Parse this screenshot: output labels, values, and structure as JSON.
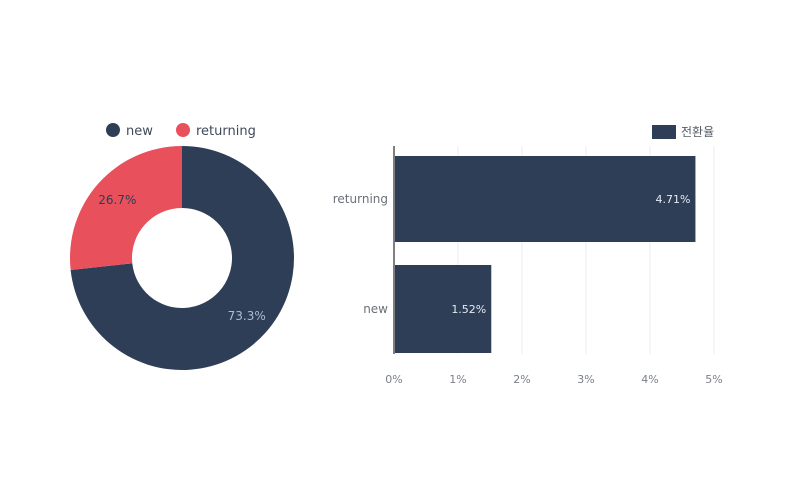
{
  "colors": {
    "navy": "#2e3e57",
    "red": "#e8505b",
    "grid": "#e9ecef",
    "axis": "#555555"
  },
  "chart_data": [
    {
      "type": "pie",
      "donut": true,
      "legend_position": "top",
      "slices": [
        {
          "name": "new",
          "value": 73.3,
          "label": "73.3%",
          "color": "#2e3e57"
        },
        {
          "name": "returning",
          "value": 26.7,
          "label": "26.7%",
          "color": "#e8505b"
        }
      ]
    },
    {
      "type": "bar",
      "orientation": "horizontal",
      "categories": [
        "returning",
        "new"
      ],
      "series": [
        {
          "name": "전환율",
          "values": [
            4.71,
            1.52
          ],
          "labels": [
            "4.71%",
            "1.52%"
          ],
          "color": "#2e3e57"
        }
      ],
      "xlim": [
        0,
        5
      ],
      "xticks": [
        "0%",
        "1%",
        "2%",
        "3%",
        "4%",
        "5%"
      ],
      "grid": true,
      "legend_position": "top-right"
    }
  ]
}
